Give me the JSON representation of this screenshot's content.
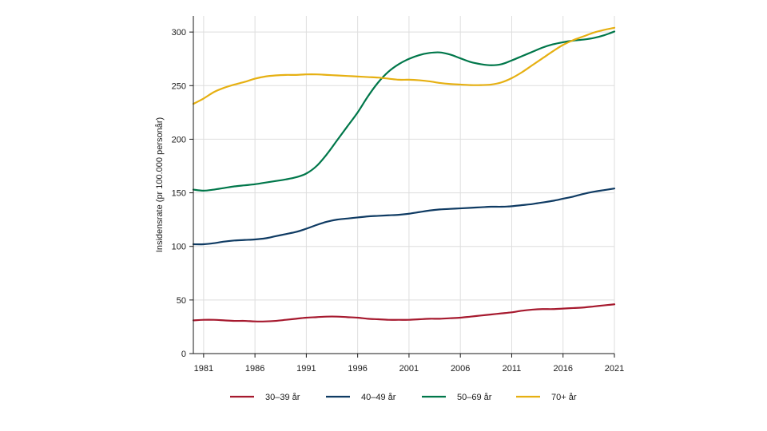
{
  "chart_data": {
    "type": "line",
    "title": "",
    "xlabel": "",
    "ylabel": "Insidensrate (pr 100.000 personår)",
    "xlim": [
      1980,
      2021
    ],
    "ylim": [
      0,
      315
    ],
    "xticks": [
      1981,
      1986,
      1991,
      1996,
      2001,
      2006,
      2011,
      2016,
      2021
    ],
    "yticks": [
      0,
      50,
      100,
      150,
      200,
      250,
      300
    ],
    "grid": true,
    "legend_position": "bottom",
    "x": [
      1980,
      1981,
      1982,
      1983,
      1984,
      1985,
      1986,
      1987,
      1988,
      1989,
      1990,
      1991,
      1992,
      1993,
      1994,
      1995,
      1996,
      1997,
      1998,
      1999,
      2000,
      2001,
      2002,
      2003,
      2004,
      2005,
      2006,
      2007,
      2008,
      2009,
      2010,
      2011,
      2012,
      2013,
      2014,
      2015,
      2016,
      2017,
      2018,
      2019,
      2020,
      2021
    ],
    "series": [
      {
        "name": "30–39 år",
        "color": "#a6192e",
        "values": [
          31,
          31.5,
          31.5,
          31,
          30.5,
          30.5,
          30,
          30,
          30.5,
          31.5,
          32.5,
          33.5,
          34,
          34.5,
          34.5,
          34,
          33.5,
          32.5,
          32,
          31.5,
          31.5,
          31.5,
          32,
          32.5,
          32.5,
          33,
          33.5,
          34.5,
          35.5,
          36.5,
          37.5,
          38.5,
          40,
          41,
          41.5,
          41.5,
          42,
          42.5,
          43,
          44,
          45,
          46
        ]
      },
      {
        "name": "40–49 år",
        "color": "#0f3b63",
        "values": [
          102,
          102,
          103,
          104.5,
          105.5,
          106,
          106.5,
          107.5,
          109.5,
          111.5,
          113.5,
          116.5,
          120,
          123,
          125,
          126,
          127,
          128,
          128.5,
          129,
          129.5,
          130.5,
          132,
          133.5,
          134.5,
          135,
          135.5,
          136,
          136.5,
          137,
          137,
          137.5,
          138.5,
          139.5,
          141,
          142.5,
          144.5,
          146.5,
          149,
          151,
          152.5,
          154
        ]
      },
      {
        "name": "50–69 år",
        "color": "#00774a",
        "values": [
          153,
          152,
          153,
          154.5,
          156,
          157,
          158,
          159.5,
          161,
          162.5,
          164.5,
          168,
          175,
          186,
          199,
          212,
          225,
          240,
          253,
          263,
          270,
          275,
          278.5,
          280.5,
          281,
          279,
          275.5,
          272,
          270,
          269,
          270,
          273.5,
          277.5,
          281.5,
          285.5,
          288.5,
          290.5,
          292,
          293,
          294.5,
          297,
          300.5
        ]
      },
      {
        "name": "70+ år",
        "color": "#e6b012",
        "values": [
          233,
          238,
          244,
          248,
          251,
          253.5,
          256.5,
          258.5,
          259.5,
          260,
          260,
          260.5,
          260.5,
          260,
          259.5,
          259,
          258.5,
          258,
          257.5,
          256.5,
          255.5,
          255.5,
          255,
          254,
          252.5,
          251.5,
          251,
          250.5,
          250.5,
          251,
          253,
          257,
          262.5,
          269,
          275.5,
          282,
          288,
          292.5,
          296,
          299.5,
          302,
          304
        ]
      }
    ]
  }
}
